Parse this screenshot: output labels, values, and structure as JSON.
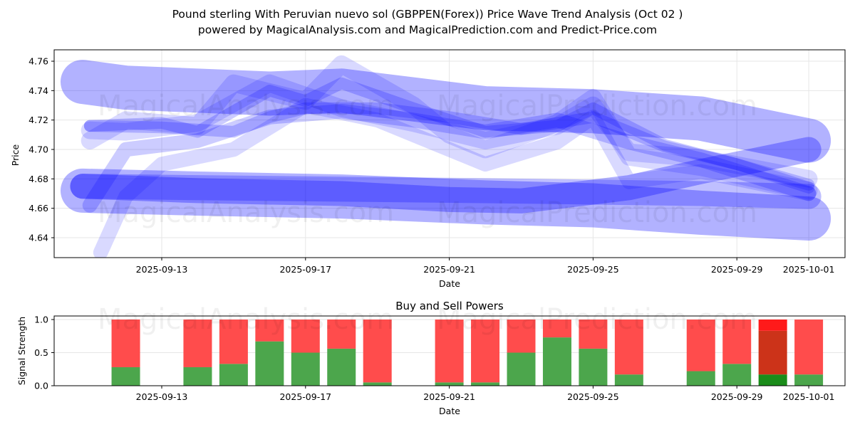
{
  "header": {
    "title": "Pound sterling With Peruvian nuevo sol (GBPPEN(Forex)) Price Wave Trend Analysis (Oct 02 )",
    "subtitle": "powered by MagicalAnalysis.com and MagicalPrediction.com and Predict-Price.com"
  },
  "watermarks": [
    "MagicalAnalysis.com",
    "MagicalPrediction.com"
  ],
  "colors": {
    "wave": "#0000ff",
    "buy": "#4ca64c",
    "sell": "#ff4c4c",
    "buy_strong": "#1a8c1a",
    "sell_mid": "#cc3319",
    "sell_strong": "#ff1a1a",
    "grid": "#e6e6e6"
  },
  "chart_data": [
    {
      "type": "area",
      "title": "",
      "xlabel": "Date",
      "ylabel": "Price",
      "ylim": [
        4.625,
        4.767
      ],
      "xlim": [
        "2025-09-10",
        "2025-10-02"
      ],
      "yticks": [
        "4.64",
        "4.66",
        "4.68",
        "4.70",
        "4.72",
        "4.74",
        "4.76"
      ],
      "xticks": [
        "2025-09-13",
        "2025-09-17",
        "2025-09-21",
        "2025-09-25",
        "2025-09-29",
        "2025-10-01"
      ],
      "grid": true,
      "series": [
        {
          "name": "wave-upper-wide",
          "opacity": 0.3,
          "width": 0.03,
          "x": [
            "2025-09-10.8",
            "2025-09-12",
            "2025-09-16",
            "2025-09-18",
            "2025-09-22",
            "2025-09-25",
            "2025-09-28",
            "2025-10-01"
          ],
          "y": [
            4.746,
            4.742,
            4.738,
            4.74,
            4.728,
            4.726,
            4.721,
            4.706
          ]
        },
        {
          "name": "wave-lower-wide",
          "opacity": 0.3,
          "width": 0.03,
          "x": [
            "2025-09-10.8",
            "2025-09-14",
            "2025-09-18",
            "2025-09-22",
            "2025-09-25",
            "2025-09-28",
            "2025-10-01"
          ],
          "y": [
            4.672,
            4.67,
            4.668,
            4.664,
            4.662,
            4.657,
            4.653
          ]
        },
        {
          "name": "wave-lower-core",
          "opacity": 0.3,
          "width": 0.017,
          "x": [
            "2025-09-10.8",
            "2025-09-14",
            "2025-09-18",
            "2025-09-21",
            "2025-09-23",
            "2025-09-26",
            "2025-09-28",
            "2025-10-01"
          ],
          "y": [
            4.675,
            4.672,
            4.67,
            4.666,
            4.665,
            4.674,
            4.685,
            4.7
          ]
        },
        {
          "name": "wave-lower-second",
          "opacity": 0.25,
          "width": 0.017,
          "x": [
            "2025-09-10.8",
            "2025-09-14",
            "2025-09-18",
            "2025-09-22",
            "2025-09-25",
            "2025-09-28",
            "2025-10-01"
          ],
          "y": [
            4.675,
            4.674,
            4.673,
            4.672,
            4.671,
            4.67,
            4.668
          ]
        },
        {
          "name": "wave-mid-1",
          "opacity": 0.2,
          "width": 0.008,
          "x": [
            "2025-09-11",
            "2025-09-13",
            "2025-09-15",
            "2025-09-16",
            "2025-09-17",
            "2025-09-19",
            "2025-09-21",
            "2025-09-23",
            "2025-09-25",
            "2025-09-27",
            "2025-09-29",
            "2025-10-01"
          ],
          "y": [
            4.716,
            4.715,
            4.712,
            4.722,
            4.728,
            4.728,
            4.722,
            4.714,
            4.722,
            4.702,
            4.69,
            4.676
          ]
        },
        {
          "name": "wave-mid-2",
          "opacity": 0.2,
          "width": 0.008,
          "x": [
            "2025-09-11",
            "2025-09-13",
            "2025-09-14",
            "2025-09-16",
            "2025-09-17",
            "2025-09-18",
            "2025-09-20",
            "2025-09-22",
            "2025-09-24",
            "2025-09-25",
            "2025-09-27",
            "2025-09-29",
            "2025-10-01"
          ],
          "y": [
            4.716,
            4.718,
            4.712,
            4.74,
            4.733,
            4.745,
            4.728,
            4.712,
            4.716,
            4.728,
            4.703,
            4.69,
            4.674
          ]
        },
        {
          "name": "wave-mid-3",
          "opacity": 0.15,
          "width": 0.012,
          "x": [
            "2025-09-11",
            "2025-09-12",
            "2025-09-14",
            "2025-09-16",
            "2025-09-18",
            "2025-09-20",
            "2025-09-22",
            "2025-09-24",
            "2025-09-25",
            "2025-09-26",
            "2025-09-28",
            "2025-10-01"
          ],
          "y": [
            4.713,
            4.712,
            4.718,
            4.745,
            4.728,
            4.718,
            4.706,
            4.716,
            4.73,
            4.698,
            4.694,
            4.68
          ]
        },
        {
          "name": "wave-mid-4",
          "opacity": 0.15,
          "width": 0.012,
          "x": [
            "2025-09-11",
            "2025-09-12",
            "2025-09-14",
            "2025-09-15",
            "2025-09-17",
            "2025-09-18",
            "2025-09-20",
            "2025-09-21",
            "2025-09-22",
            "2025-09-24",
            "2025-09-25",
            "2025-09-26",
            "2025-09-28",
            "2025-10-01"
          ],
          "y": [
            4.706,
            4.72,
            4.716,
            4.745,
            4.733,
            4.758,
            4.73,
            4.71,
            4.7,
            4.718,
            4.735,
            4.695,
            4.688,
            4.672
          ]
        },
        {
          "name": "wave-steep-1",
          "opacity": 0.15,
          "width": 0.01,
          "x": [
            "2025-09-11.3",
            "2025-09-12",
            "2025-09-13",
            "2025-09-15",
            "2025-09-17",
            "2025-09-19",
            "2025-09-21",
            "2025-09-22",
            "2025-09-24",
            "2025-09-25",
            "2025-09-26",
            "2025-09-28",
            "2025-10-01"
          ],
          "y": [
            4.63,
            4.668,
            4.69,
            4.7,
            4.73,
            4.72,
            4.7,
            4.69,
            4.705,
            4.722,
            4.678,
            4.685,
            4.67
          ]
        },
        {
          "name": "wave-steep-2",
          "opacity": 0.2,
          "width": 0.01,
          "x": [
            "2025-09-11",
            "2025-09-12",
            "2025-09-14",
            "2025-09-16",
            "2025-09-18",
            "2025-09-20",
            "2025-09-22",
            "2025-09-24",
            "2025-09-26",
            "2025-09-28",
            "2025-10-01"
          ],
          "y": [
            4.662,
            4.7,
            4.706,
            4.722,
            4.726,
            4.72,
            4.712,
            4.72,
            4.705,
            4.693,
            4.67
          ]
        }
      ]
    },
    {
      "type": "bar",
      "title": "Buy and Sell Powers",
      "xlabel": "Date",
      "ylabel": "Signal Strength",
      "ylim": [
        0,
        1.05
      ],
      "yticks": [
        "0.0",
        "0.5",
        "1.0"
      ],
      "xticks": [
        "2025-09-13",
        "2025-09-17",
        "2025-09-21",
        "2025-09-25",
        "2025-09-29",
        "2025-10-01"
      ],
      "grid": true,
      "categories": [
        "2025-09-12",
        "2025-09-14",
        "2025-09-15",
        "2025-09-16",
        "2025-09-17",
        "2025-09-18",
        "2025-09-19",
        "2025-09-21",
        "2025-09-22",
        "2025-09-23",
        "2025-09-24",
        "2025-09-25",
        "2025-09-26",
        "2025-09-28",
        "2025-09-29",
        "2025-09-30",
        "2025-10-01"
      ],
      "series": [
        {
          "name": "Buy",
          "values": [
            0.28,
            0.28,
            0.33,
            0.67,
            0.5,
            0.56,
            0.05,
            0.05,
            0.05,
            0.5,
            0.73,
            0.56,
            0.17,
            0.22,
            0.33,
            0.17,
            0.17
          ]
        },
        {
          "name": "Sell",
          "values": [
            0.72,
            0.72,
            0.67,
            0.33,
            0.5,
            0.44,
            0.95,
            0.95,
            0.95,
            0.5,
            0.27,
            0.44,
            0.83,
            0.78,
            0.67,
            0.83,
            0.83
          ]
        }
      ],
      "highlight": {
        "category": "2025-09-30",
        "strong_sell_top": 0.17
      }
    }
  ]
}
